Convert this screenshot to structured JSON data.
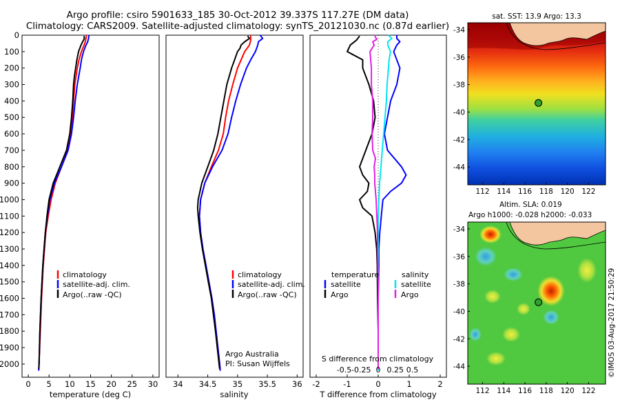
{
  "figure": {
    "title_line1": "Argo profile: csiro 5901633_185 30-Oct-2012 39.337S 117.27E (DM data)",
    "title_line2": "Climatology: CARS2009. Satellite-adjusted climatology: synTS_20121030.nc (0.87d earlier)",
    "stamp": "©IMOS 03-Aug-2017 21:50:29"
  },
  "colors": {
    "climatology": "#ff0000",
    "satellite": "#0000ff",
    "argo": "#000000",
    "salinity_sat": "#00e5ee",
    "salinity_argo": "#e020e0",
    "land": "#f4c6a0"
  },
  "depth_axis": {
    "ylim": [
      2080,
      0
    ],
    "ticks": [
      0,
      100,
      200,
      300,
      400,
      500,
      600,
      700,
      800,
      900,
      1000,
      1100,
      1200,
      1300,
      1400,
      1500,
      1600,
      1700,
      1800,
      1900,
      2000
    ]
  },
  "chart_data": [
    {
      "type": "line",
      "panel": "temperature",
      "xlabel": "temperature (deg C)",
      "xlim": [
        -1.5,
        31.5
      ],
      "xticks": [
        0,
        5,
        10,
        15,
        20,
        25,
        30
      ],
      "legend": [
        "climatology",
        "satellite-adj. clim.",
        "Argo(..raw -QC)"
      ],
      "series": [
        {
          "key": "climatology",
          "depth": [
            0,
            20,
            50,
            100,
            150,
            200,
            300,
            400,
            500,
            600,
            700,
            800,
            900,
            1000,
            1100,
            1200,
            1300,
            1400,
            1600,
            1800,
            2000,
            2040
          ],
          "values": [
            14.0,
            13.9,
            13.6,
            12.8,
            12.2,
            11.8,
            11.2,
            10.9,
            10.6,
            10.2,
            9.5,
            8.0,
            6.5,
            5.5,
            4.8,
            4.2,
            3.9,
            3.6,
            3.2,
            2.9,
            2.6,
            2.5
          ]
        },
        {
          "key": "satellite",
          "depth": [
            0,
            20,
            40,
            60,
            100,
            150,
            200,
            300,
            400,
            500,
            600,
            700,
            800,
            900,
            1000,
            1100,
            1200,
            1300,
            1400,
            1600,
            1800,
            2000,
            2040
          ],
          "values": [
            14.6,
            14.5,
            14.3,
            13.9,
            13.3,
            12.8,
            12.5,
            11.8,
            11.3,
            10.9,
            10.4,
            9.6,
            8.0,
            6.3,
            5.2,
            4.6,
            4.1,
            3.8,
            3.5,
            3.1,
            2.8,
            2.6,
            2.5
          ]
        },
        {
          "key": "argo",
          "depth": [
            5,
            20,
            40,
            60,
            80,
            100,
            150,
            200,
            250,
            300,
            400,
            500,
            600,
            700,
            800,
            900,
            1000,
            1100,
            1200,
            1300,
            1400,
            1600,
            1800,
            2000,
            2030
          ],
          "values": [
            13.4,
            13.5,
            13.1,
            12.7,
            12.4,
            12.1,
            11.7,
            11.4,
            11.1,
            10.9,
            10.7,
            10.4,
            10.0,
            9.2,
            7.6,
            6.0,
            5.0,
            4.5,
            4.1,
            3.8,
            3.5,
            3.1,
            2.8,
            2.6,
            2.55
          ]
        }
      ]
    },
    {
      "type": "line",
      "panel": "salinity",
      "xlabel": "salinity",
      "xlim": [
        33.8,
        36.1
      ],
      "xticks": [
        34,
        34.5,
        35,
        35.5,
        36
      ],
      "xtick_labels": [
        "34",
        "34.5",
        "35",
        "35.5",
        "36"
      ],
      "legend": [
        "climatology",
        "satellite-adj. clim.",
        "Argo(..raw -QC)"
      ],
      "annotation_line1": "Argo Australia",
      "annotation_line2": "PI: Susan Wijffels",
      "series": [
        {
          "key": "climatology",
          "depth": [
            0,
            30,
            60,
            100,
            150,
            200,
            300,
            400,
            500,
            600,
            700,
            800,
            900,
            1000,
            1100,
            1200,
            1300,
            1400,
            1500,
            1600,
            1700,
            1800,
            1900,
            2000,
            2040
          ],
          "values": [
            35.22,
            35.22,
            35.2,
            35.12,
            35.06,
            35.0,
            34.92,
            34.85,
            34.8,
            34.76,
            34.68,
            34.56,
            34.45,
            34.38,
            34.36,
            34.38,
            34.42,
            34.47,
            34.52,
            34.57,
            34.61,
            34.64,
            34.67,
            34.7,
            34.71
          ]
        },
        {
          "key": "satellite",
          "depth": [
            0,
            20,
            40,
            60,
            100,
            150,
            200,
            300,
            400,
            500,
            600,
            700,
            800,
            900,
            1000,
            1100,
            1200,
            1300,
            1400,
            1500,
            1600,
            1700,
            1800,
            1900,
            2000,
            2040
          ],
          "values": [
            35.38,
            35.42,
            35.35,
            35.34,
            35.3,
            35.22,
            35.15,
            35.05,
            34.97,
            34.9,
            34.84,
            34.74,
            34.58,
            34.45,
            34.38,
            34.36,
            34.38,
            34.42,
            34.47,
            34.52,
            34.57,
            34.61,
            34.64,
            34.67,
            34.7,
            34.71
          ]
        },
        {
          "key": "argo",
          "depth": [
            5,
            20,
            40,
            60,
            80,
            100,
            150,
            200,
            300,
            400,
            500,
            600,
            700,
            800,
            900,
            1000,
            1050,
            1100,
            1200,
            1300,
            1400,
            1500,
            1600,
            1800,
            2000,
            2030
          ],
          "values": [
            35.17,
            35.2,
            35.12,
            35.06,
            35.04,
            35.0,
            34.95,
            34.9,
            34.82,
            34.77,
            34.72,
            34.67,
            34.6,
            34.5,
            34.4,
            34.34,
            34.33,
            34.34,
            34.37,
            34.41,
            34.46,
            34.51,
            34.56,
            34.63,
            34.69,
            34.7
          ]
        }
      ]
    },
    {
      "type": "line",
      "panel": "difference",
      "xlabel_bottom": "T difference from climatology",
      "xlabel_top": "S difference from climatology",
      "t_xlim": [
        -2.2,
        2.2
      ],
      "t_ticks": [
        -2,
        -1,
        0,
        1,
        2
      ],
      "s_ticks": [
        -0.5,
        -0.25,
        0,
        0.25,
        0.5
      ],
      "s_tick_labels": [
        "-0.5",
        "-0.25",
        "0",
        "0.25",
        "0.5"
      ],
      "s_scale_note": "S units map to T axis with factor 2.2",
      "legend_temperature_header": "temperature",
      "legend_salinity_header": "salinity",
      "legend_satellite": "satellite",
      "legend_argo": "Argo",
      "series": [
        {
          "key": "t_satellite",
          "depth": [
            0,
            20,
            40,
            60,
            100,
            150,
            200,
            300,
            400,
            500,
            600,
            700,
            800,
            850,
            900,
            950,
            1000,
            1100,
            1200,
            1300,
            1400,
            1600,
            1800,
            2000,
            2040
          ],
          "values": [
            0.6,
            0.6,
            0.7,
            0.6,
            0.5,
            0.6,
            0.7,
            0.6,
            0.4,
            0.3,
            0.2,
            0.3,
            0.75,
            0.9,
            0.75,
            0.4,
            0.15,
            0.1,
            0.05,
            0.02,
            0.02,
            0.0,
            0.0,
            0.0,
            0.0
          ]
        },
        {
          "key": "t_argo",
          "depth": [
            5,
            30,
            60,
            100,
            150,
            200,
            300,
            400,
            500,
            600,
            700,
            800,
            850,
            900,
            950,
            1000,
            1050,
            1100,
            1200,
            1300,
            1400,
            1600,
            1800,
            2000,
            2030
          ],
          "values": [
            -0.6,
            -0.7,
            -0.9,
            -1.0,
            -0.5,
            -0.5,
            -0.3,
            -0.15,
            -0.1,
            -0.2,
            -0.4,
            -0.6,
            -0.5,
            -0.3,
            -0.35,
            -0.6,
            -0.5,
            -0.2,
            -0.1,
            -0.05,
            -0.03,
            -0.02,
            0.0,
            0.0,
            0.0
          ]
        },
        {
          "key": "s_satellite",
          "depth": [
            0,
            20,
            40,
            60,
            100,
            150,
            200,
            300,
            400,
            500,
            600,
            700,
            800,
            850,
            900,
            1000,
            1100,
            1200,
            1300,
            1500,
            1700,
            2000,
            2040
          ],
          "values": [
            0.15,
            0.2,
            0.14,
            0.14,
            0.18,
            0.16,
            0.15,
            0.13,
            0.12,
            0.1,
            0.08,
            0.06,
            0.04,
            0.03,
            0.02,
            0.01,
            0.0,
            0.0,
            0.0,
            0.0,
            0.0,
            0.0,
            0.0
          ]
        },
        {
          "key": "s_argo",
          "depth": [
            5,
            25,
            40,
            60,
            100,
            150,
            200,
            300,
            400,
            500,
            600,
            700,
            750,
            800,
            850,
            900,
            950,
            1000,
            1100,
            1200,
            1300,
            1500,
            1800,
            2000,
            2030
          ],
          "values": [
            -0.05,
            -0.02,
            -0.08,
            -0.06,
            -0.12,
            -0.11,
            -0.1,
            -0.1,
            -0.08,
            -0.08,
            -0.09,
            -0.08,
            -0.04,
            -0.06,
            -0.05,
            -0.05,
            -0.04,
            -0.03,
            -0.02,
            -0.01,
            -0.01,
            0.0,
            0.0,
            0.0,
            0.0
          ]
        }
      ]
    },
    {
      "type": "heatmap",
      "panel": "sst_map",
      "title": "sat. SST: 13.9  Argo: 13.3",
      "lon_range": [
        110.6,
        123.6
      ],
      "lat_range": [
        -45.3,
        -33.5
      ],
      "xticks": [
        112,
        114,
        116,
        118,
        120,
        122
      ],
      "yticks": [
        -34,
        -36,
        -38,
        -40,
        -42,
        -44
      ],
      "marker": {
        "lon": 117.27,
        "lat": -39.337
      }
    },
    {
      "type": "heatmap",
      "panel": "sla_map",
      "title_line1": "Altim. SLA: 0.019",
      "title_line2": "Argo h1000: -0.028 h2000: -0.033",
      "lon_range": [
        110.6,
        123.6
      ],
      "lat_range": [
        -45.3,
        -33.5
      ],
      "xticks": [
        112,
        114,
        116,
        118,
        120,
        122
      ],
      "yticks": [
        -34,
        -36,
        -38,
        -40,
        -42,
        -44
      ],
      "marker": {
        "lon": 117.27,
        "lat": -39.337
      }
    }
  ]
}
